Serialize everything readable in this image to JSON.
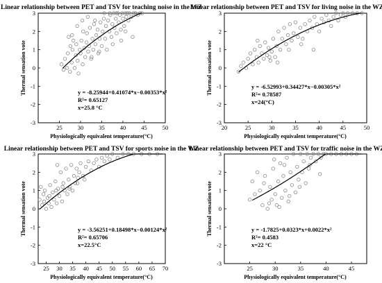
{
  "chart_data": [
    {
      "type": "scatter",
      "title": "Linear relationship between PET and TSV for teaching noise in the WZ",
      "xlabel": "Physiologically equivalent temperature(°C)",
      "ylabel": "Thermal sensation vote",
      "xlim": [
        20,
        50
      ],
      "ylim": [
        -3,
        3
      ],
      "xticks": [
        25,
        30,
        35,
        40,
        45,
        50
      ],
      "yticks": [
        -3,
        -2,
        -1,
        0,
        1,
        2,
        3
      ],
      "grid": false,
      "fit": {
        "a": -8.25944,
        "b": 0.41074,
        "c": -0.00353,
        "x_range": [
          25.8,
          44.5
        ]
      },
      "annotation": [
        "y = -8.25944+0.41074*x−0.00353*x²",
        "R²= 0.65127",
        "x=25.8 °C"
      ],
      "points": {
        "x": [
          25.5,
          26.0,
          26.3,
          26.8,
          27.0,
          27.5,
          27.6,
          27.9,
          28.1,
          28.3,
          28.6,
          28.9,
          29.0,
          29.3,
          29.5,
          29.8,
          30.0,
          30.2,
          30.5,
          30.6,
          30.9,
          31.1,
          31.4,
          31.5,
          31.8,
          32.0,
          32.2,
          32.5,
          32.8,
          33.0,
          33.2,
          33.5,
          33.7,
          34.0,
          34.2,
          34.5,
          34.7,
          35.0,
          35.2,
          35.5,
          35.8,
          36.0,
          36.2,
          36.5,
          36.8,
          37.0,
          37.3,
          37.5,
          37.8,
          38.0,
          38.3,
          38.5,
          38.8,
          39.0,
          39.3,
          39.5,
          39.8,
          40.0,
          40.3,
          40.5,
          40.8,
          41.0,
          41.3,
          41.5,
          42.0,
          42.5,
          43.0,
          43.5,
          44.0,
          44.5,
          28.0,
          29.2,
          30.4,
          31.7,
          33.4,
          35.6,
          36.9,
          38.4,
          40.6,
          42.3,
          27.2,
          32.6,
          34.4,
          37.6,
          39.6
        ],
        "y": [
          0.2,
          -0.1,
          0.5,
          0.0,
          0.8,
          -0.2,
          1.2,
          0.3,
          1.0,
          1.5,
          0.0,
          0.7,
          1.3,
          0.4,
          -0.3,
          1.0,
          0.8,
          1.5,
          0.2,
          2.0,
          1.1,
          0.6,
          1.4,
          1.9,
          0.9,
          1.2,
          2.2,
          0.5,
          1.6,
          1.0,
          2.4,
          1.3,
          1.8,
          2.1,
          0.8,
          1.6,
          2.5,
          1.2,
          2.0,
          2.7,
          1.6,
          2.3,
          1.0,
          2.6,
          2.0,
          2.9,
          1.7,
          2.4,
          3.0,
          2.2,
          2.7,
          1.9,
          3.0,
          2.5,
          2.9,
          2.1,
          3.0,
          2.7,
          2.3,
          3.0,
          2.8,
          3.0,
          2.6,
          3.0,
          2.8,
          3.0,
          3.0,
          2.9,
          3.0,
          3.0,
          1.8,
          2.3,
          2.6,
          2.8,
          2.6,
          3.0,
          3.0,
          3.0,
          2.0,
          1.7,
          1.7,
          0.6,
          0.9,
          1.3,
          1.5
        ]
      }
    },
    {
      "type": "scatter",
      "title": "Linear relationship between PET and TSV for living noise in the WZ",
      "xlabel": "Physiologically equivalent temperature(°C)",
      "ylabel": "Thermal sensation vote",
      "xlim": [
        20,
        50
      ],
      "ylim": [
        -3,
        3
      ],
      "xticks": [
        20,
        25,
        30,
        35,
        40,
        45,
        50
      ],
      "yticks": [
        -3,
        -2,
        -1,
        0,
        1,
        2,
        3
      ],
      "grid": false,
      "fit": {
        "a": -6.52993,
        "b": 0.34427,
        "c": -0.00305,
        "x_range": [
          23.0,
          49.0
        ]
      },
      "annotation": [
        "y = -6.52993+0.34427*x−0.00305*x²",
        "R²= 0.78587",
        "x=24(°C)"
      ],
      "points": {
        "x": [
          23.0,
          23.5,
          24.0,
          24.6,
          25.0,
          25.5,
          26.0,
          26.4,
          26.8,
          27.2,
          27.5,
          27.9,
          28.3,
          28.6,
          29.0,
          29.3,
          29.7,
          30.0,
          30.3,
          30.7,
          31.0,
          31.4,
          31.8,
          32.2,
          32.6,
          33.0,
          33.4,
          33.8,
          34.2,
          34.6,
          35.0,
          35.5,
          36.0,
          36.5,
          37.0,
          37.5,
          38.0,
          38.5,
          39.0,
          39.5,
          40.0,
          40.5,
          41.0,
          41.5,
          42.0,
          42.5,
          43.0,
          43.5,
          44.0,
          44.5,
          45.0,
          45.5,
          46.0,
          47.0,
          48.0,
          49.0,
          27.0,
          29.5,
          31.2,
          33.6,
          36.2,
          38.8
        ],
        "y": [
          -0.2,
          0.1,
          0.3,
          0.0,
          0.5,
          0.8,
          0.2,
          1.0,
          0.6,
          0.3,
          1.2,
          0.8,
          0.5,
          1.4,
          0.7,
          1.1,
          0.4,
          0.9,
          1.6,
          0.6,
          1.2,
          2.0,
          1.0,
          1.6,
          2.2,
          1.3,
          1.8,
          2.4,
          1.5,
          1.9,
          2.5,
          1.7,
          2.2,
          1.6,
          2.4,
          2.0,
          2.6,
          2.2,
          2.8,
          2.4,
          2.0,
          2.7,
          2.5,
          2.9,
          2.6,
          2.3,
          2.8,
          3.0,
          2.6,
          2.9,
          3.0,
          2.8,
          3.0,
          3.0,
          3.0,
          3.0,
          1.5,
          0.6,
          0.3,
          1.0,
          1.3,
          1.0
        ]
      }
    },
    {
      "type": "scatter",
      "title": "Linear relationship between PET and TSV for sports noise in the WZ",
      "xlabel": "Physiologically equivalent temperature(°C)",
      "ylabel": "Thermal sensation vote",
      "xlim": [
        22,
        70
      ],
      "ylim": [
        -3,
        3
      ],
      "xticks": [
        25,
        30,
        35,
        40,
        45,
        50,
        55,
        60,
        65,
        70
      ],
      "yticks": [
        -3,
        -2,
        -1,
        0,
        1,
        2,
        3
      ],
      "grid": false,
      "fit": {
        "a": -3.56251,
        "b": 0.18498,
        "c": -0.00124,
        "x_range": [
          22.5,
          69.0
        ]
      },
      "annotation": [
        "y = -3.56251+0.18498*x−0.00124*x²",
        "R²= 0.65706",
        "x=22.5°C"
      ],
      "points": {
        "x": [
          22.5,
          23.0,
          23.5,
          24.0,
          24.5,
          25.0,
          25.5,
          26.0,
          26.5,
          27.0,
          27.5,
          28.0,
          28.5,
          29.0,
          29.5,
          30.0,
          30.5,
          31.0,
          31.5,
          32.0,
          32.5,
          33.0,
          33.5,
          34.0,
          34.5,
          35.0,
          35.5,
          36.0,
          36.5,
          37.0,
          37.5,
          38.0,
          39.0,
          40.0,
          41.0,
          42.0,
          43.0,
          44.0,
          45.0,
          46.0,
          47.0,
          48.0,
          49.0,
          50.0,
          52.0,
          54.0,
          56.0,
          58.0,
          61.0,
          64.0,
          67.0,
          24.2,
          26.2,
          28.8,
          31.2,
          33.8,
          36.8,
          39.5,
          29.2
        ],
        "y": [
          0.5,
          1.2,
          0.2,
          0.8,
          1.0,
          0.0,
          0.6,
          0.3,
          1.3,
          0.1,
          0.9,
          0.5,
          1.5,
          0.3,
          1.1,
          0.7,
          2.0,
          0.4,
          1.4,
          1.0,
          2.2,
          0.8,
          1.6,
          1.2,
          2.4,
          1.0,
          1.8,
          1.4,
          2.2,
          1.7,
          2.0,
          2.5,
          1.8,
          2.3,
          2.6,
          2.1,
          2.5,
          2.7,
          2.3,
          2.8,
          2.6,
          2.9,
          2.7,
          3.0,
          2.8,
          3.0,
          3.0,
          3.0,
          3.0,
          3.0,
          3.0,
          0.4,
          0.7,
          1.0,
          1.2,
          1.1,
          1.4,
          1.6,
          2.4
        ]
      }
    },
    {
      "type": "scatter",
      "title": "Linear relationship between PET and TSV for traffic noise in the WZ",
      "xlabel": "Physiologically equivalent temperature(°C)",
      "ylabel": "Thermal sensation vote",
      "xlim": [
        20,
        48
      ],
      "ylim": [
        -3,
        3
      ],
      "xticks": [
        25,
        30,
        35,
        40,
        45
      ],
      "yticks": [
        -3,
        -2,
        -1,
        0,
        1,
        2,
        3
      ],
      "grid": false,
      "fit": {
        "a": -1.7825,
        "b": 0.0323,
        "c": 0.0022,
        "x_range": [
          25.5,
          47.0
        ]
      },
      "annotation": [
        "y = -1.7825+0.0323*x+0.0022*x²",
        "R²= 0.4583",
        "x=22 °C"
      ],
      "points": {
        "x": [
          25.0,
          25.5,
          26.0,
          26.5,
          27.0,
          27.5,
          28.0,
          28.5,
          29.0,
          29.3,
          29.6,
          30.0,
          30.3,
          30.6,
          31.0,
          31.3,
          31.6,
          32.0,
          32.3,
          32.6,
          33.0,
          33.3,
          33.6,
          34.0,
          34.3,
          34.6,
          35.0,
          35.3,
          35.6,
          36.0,
          36.3,
          36.6,
          37.0,
          37.5,
          38.0,
          38.5,
          39.0,
          39.5,
          40.0,
          41.0,
          42.0,
          43.0,
          44.0,
          45.0,
          46.0,
          27.8,
          28.8,
          30.8,
          32.8,
          34.8,
          36.8,
          38.8,
          31.8,
          29.8
        ],
        "y": [
          0.5,
          1.5,
          0.8,
          2.0,
          1.0,
          0.2,
          1.8,
          0.0,
          1.2,
          0.5,
          2.2,
          0.8,
          0.2,
          1.5,
          2.5,
          0.6,
          1.8,
          1.0,
          2.8,
          0.4,
          2.0,
          1.3,
          3.0,
          0.9,
          2.3,
          1.6,
          3.0,
          2.0,
          2.6,
          1.4,
          3.0,
          2.2,
          2.8,
          3.0,
          2.6,
          3.0,
          2.8,
          3.0,
          3.0,
          3.0,
          3.0,
          3.0,
          3.0,
          3.0,
          3.0,
          1.4,
          0.3,
          0.1,
          0.7,
          1.2,
          2.4,
          1.9,
          2.4,
          2.7
        ]
      }
    }
  ]
}
